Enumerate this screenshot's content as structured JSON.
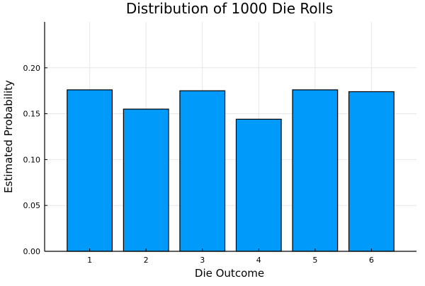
{
  "chart_data": {
    "type": "bar",
    "title": "Distribution of 1000 Die Rolls",
    "xlabel": "Die Outcome",
    "ylabel": "Estimated Probability",
    "categories": [
      "1",
      "2",
      "3",
      "4",
      "5",
      "6"
    ],
    "values": [
      0.176,
      0.155,
      0.175,
      0.144,
      0.176,
      0.174
    ],
    "ylim": [
      0,
      0.25
    ],
    "yticks": [
      0.0,
      0.05,
      0.1,
      0.15,
      0.2
    ],
    "ytick_labels": [
      "0.00",
      "0.05",
      "0.10",
      "0.15",
      "0.20"
    ],
    "grid": true,
    "legend": false,
    "colors": {
      "bar": "#009AFA",
      "bar_edge": "#000000",
      "grid": "#E6E6E6",
      "axis": "#000000"
    }
  }
}
